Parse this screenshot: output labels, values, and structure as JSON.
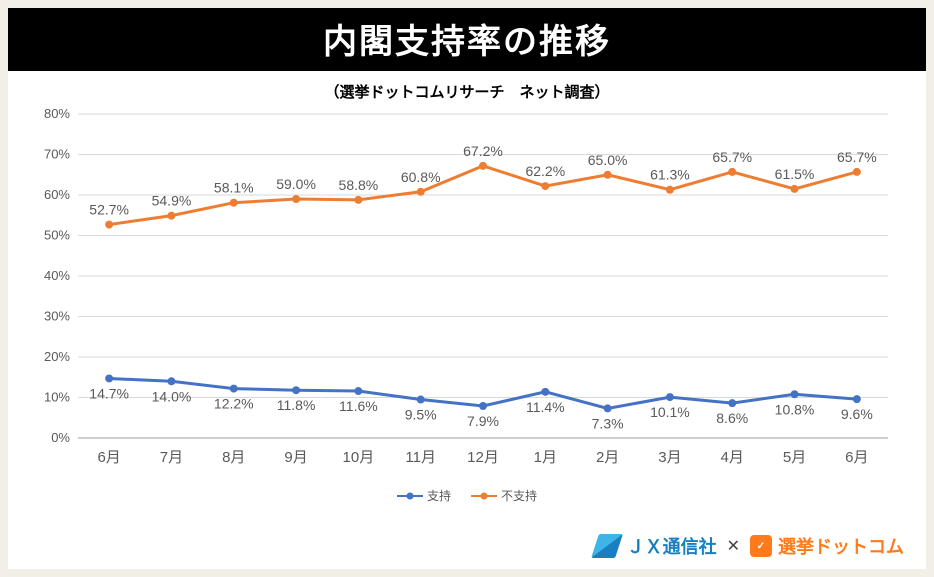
{
  "title": "内閣支持率の推移",
  "subtitle": "（選挙ドットコムリサーチ　ネット調査）",
  "chart": {
    "type": "line",
    "background_color": "#ffffff",
    "grid_color": "#d9d9d9",
    "axis_color": "#bfbfbf",
    "ylim": [
      0,
      80
    ],
    "ytick_step": 10,
    "ytick_suffix": "%",
    "ytick_fontsize": 13,
    "ytick_color": "#595959",
    "categories": [
      "6月",
      "7月",
      "8月",
      "9月",
      "10月",
      "11月",
      "12月",
      "1月",
      "2月",
      "3月",
      "4月",
      "5月",
      "6月"
    ],
    "xtick_fontsize": 15,
    "xtick_color": "#595959",
    "series": [
      {
        "name": "支持",
        "color": "#4472c4",
        "line_width": 3,
        "marker_size": 8,
        "values": [
          14.7,
          14.0,
          12.2,
          11.8,
          11.6,
          9.5,
          7.9,
          11.4,
          7.3,
          10.1,
          8.6,
          10.8,
          9.6
        ],
        "label_fontsize": 14,
        "label_color": "#595959",
        "label_position": "below"
      },
      {
        "name": "不支持",
        "color": "#ed7d31",
        "line_width": 3,
        "marker_size": 8,
        "values": [
          52.7,
          54.9,
          58.1,
          59.0,
          58.8,
          60.8,
          67.2,
          62.2,
          65.0,
          61.3,
          65.7,
          61.5,
          65.7
        ],
        "label_fontsize": 14,
        "label_color": "#595959",
        "label_position": "above"
      }
    ]
  },
  "legend": {
    "items": [
      {
        "label": "支持",
        "color": "#4472c4"
      },
      {
        "label": "不支持",
        "color": "#ed7d31"
      }
    ],
    "text_color": "#595959"
  },
  "footer": {
    "jx_text": "ＪＸ通信社",
    "jx_color": "#1a7fc0",
    "x_text": "✕",
    "senkyo_text": "選挙ドットコム",
    "senkyo_color": "#ff7a1a"
  }
}
